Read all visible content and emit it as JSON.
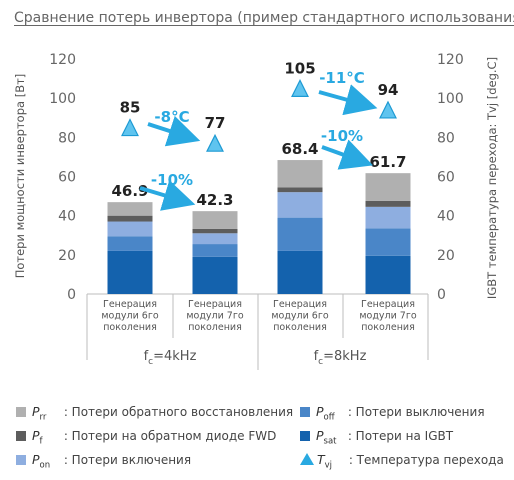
{
  "title": "Сравнение потерь инвертора (пример стандартного использования)",
  "chart_data": {
    "type": "bar",
    "stacked": true,
    "ylabel": "Потери мощности инвертора [Вт]",
    "ylabel_right": "IGBT температура перехода: Tvj [deg.C]",
    "ylim": [
      0,
      120
    ],
    "yticks": [
      0,
      20,
      40,
      60,
      80,
      100,
      120
    ],
    "categories": [
      "Генерация модули 6го поколения",
      "Генерация модули 7го поколения",
      "Генерация модули 6го поколения",
      "Генерация модули 7го поколения"
    ],
    "category_lines": [
      [
        "Генерация",
        "модули 6го",
        "поколения"
      ],
      [
        "Генерация",
        "модули 7го",
        "поколения"
      ],
      [
        "Генерация",
        "модули 6го",
        "поколения"
      ],
      [
        "Генерация",
        "модули 7го",
        "поколения"
      ]
    ],
    "groups": [
      {
        "label_main": "f",
        "label_sub": "c",
        "label_rest": "=4kHz"
      },
      {
        "label_main": "f",
        "label_sub": "c",
        "label_rest": "=8kHz"
      }
    ],
    "series": [
      {
        "key": "Psat",
        "values": [
          22,
          19,
          22,
          19.5
        ],
        "color": "#1462ad"
      },
      {
        "key": "Poff",
        "values": [
          7.5,
          6.5,
          17,
          14
        ],
        "color": "#4a86c8"
      },
      {
        "key": "Pon",
        "values": [
          7.5,
          5.5,
          13,
          11
        ],
        "color": "#8eaee0"
      },
      {
        "key": "Pf",
        "values": [
          3,
          2.3,
          2.4,
          3
        ],
        "color": "#5d5d5d"
      },
      {
        "key": "Prr",
        "values": [
          6.9,
          9,
          14,
          14.2
        ],
        "color": "#b0b0b0"
      }
    ],
    "totals": [
      "46.9",
      "42.3",
      "68.4",
      "61.7"
    ],
    "tvj": [
      85,
      77,
      105,
      94
    ],
    "tvj_labels": [
      "85",
      "77",
      "105",
      "94"
    ],
    "annotations": {
      "temp_4k": "-8°C",
      "loss_4k": "-10%",
      "temp_8k": "-11°C",
      "loss_8k": "-10%"
    },
    "accent_color": "#29a9e1",
    "grid": false
  },
  "legend": [
    {
      "key": "Prr",
      "sym": "P",
      "sub": "rr",
      "text": ": Потери обратного восстановления",
      "color": "#b0b0b0"
    },
    {
      "key": "Poff",
      "sym": "P",
      "sub": "off",
      "text": ": Потери выключения",
      "color": "#4a86c8"
    },
    {
      "key": "Pf",
      "sym": "P",
      "sub": "f",
      "text": ": Потери на обратном диоде FWD",
      "color": "#5d5d5d"
    },
    {
      "key": "Psat",
      "sym": "P",
      "sub": "sat",
      "text": ": Потери на IGBT",
      "color": "#1462ad"
    },
    {
      "key": "Pon",
      "sym": "P",
      "sub": "on",
      "text": ": Потери включения",
      "color": "#8eaee0"
    },
    {
      "key": "Tvj",
      "sym": "T",
      "sub": "vj",
      "text": ": Температура перехода",
      "color": "#29a9e1",
      "marker": "triangle"
    }
  ]
}
